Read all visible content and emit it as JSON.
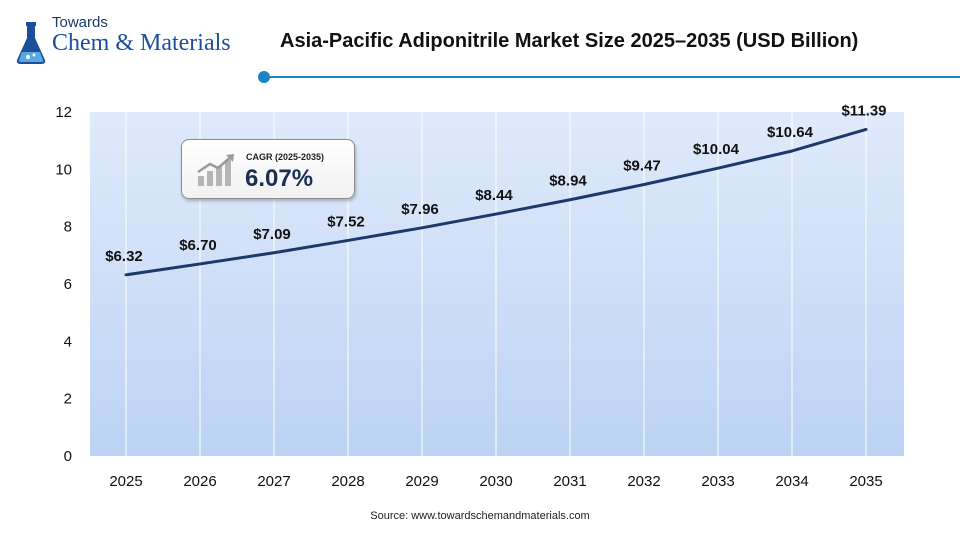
{
  "brand": {
    "line1": "Towards",
    "line2": "Chem & Materials"
  },
  "colors": {
    "accent": "#1a84c4",
    "line": "#1b3a6b",
    "plot_top": "#dfeafb",
    "plot_bottom": "#bcd3f3"
  },
  "cagr": {
    "label": "CAGR (2025-2035)",
    "value": "6.07%",
    "icon": "growth-bar-chart-icon"
  },
  "source": "Source: www.towardschemandmaterials.com",
  "chart_data": {
    "type": "line",
    "title": "Asia-Pacific Adiponitrile Market Size 2025–2035 (USD Billion)",
    "x": [
      "2025",
      "2026",
      "2027",
      "2028",
      "2029",
      "2030",
      "2031",
      "2032",
      "2033",
      "2034",
      "2035"
    ],
    "series": [
      {
        "values": [
          6.32,
          6.7,
          7.09,
          7.52,
          7.96,
          8.44,
          8.94,
          9.47,
          10.04,
          10.64,
          11.39
        ]
      }
    ],
    "data_labels": [
      "$6.32",
      "$6.70",
      "$7.09",
      "$7.52",
      "$7.96",
      "$8.44",
      "$8.94",
      "$9.47",
      "$10.04",
      "$10.64",
      "$11.39"
    ],
    "yticks": [
      "0",
      "2",
      "4",
      "6",
      "8",
      "10",
      "12"
    ],
    "ylim": [
      0,
      12
    ],
    "grid": "vertical"
  }
}
